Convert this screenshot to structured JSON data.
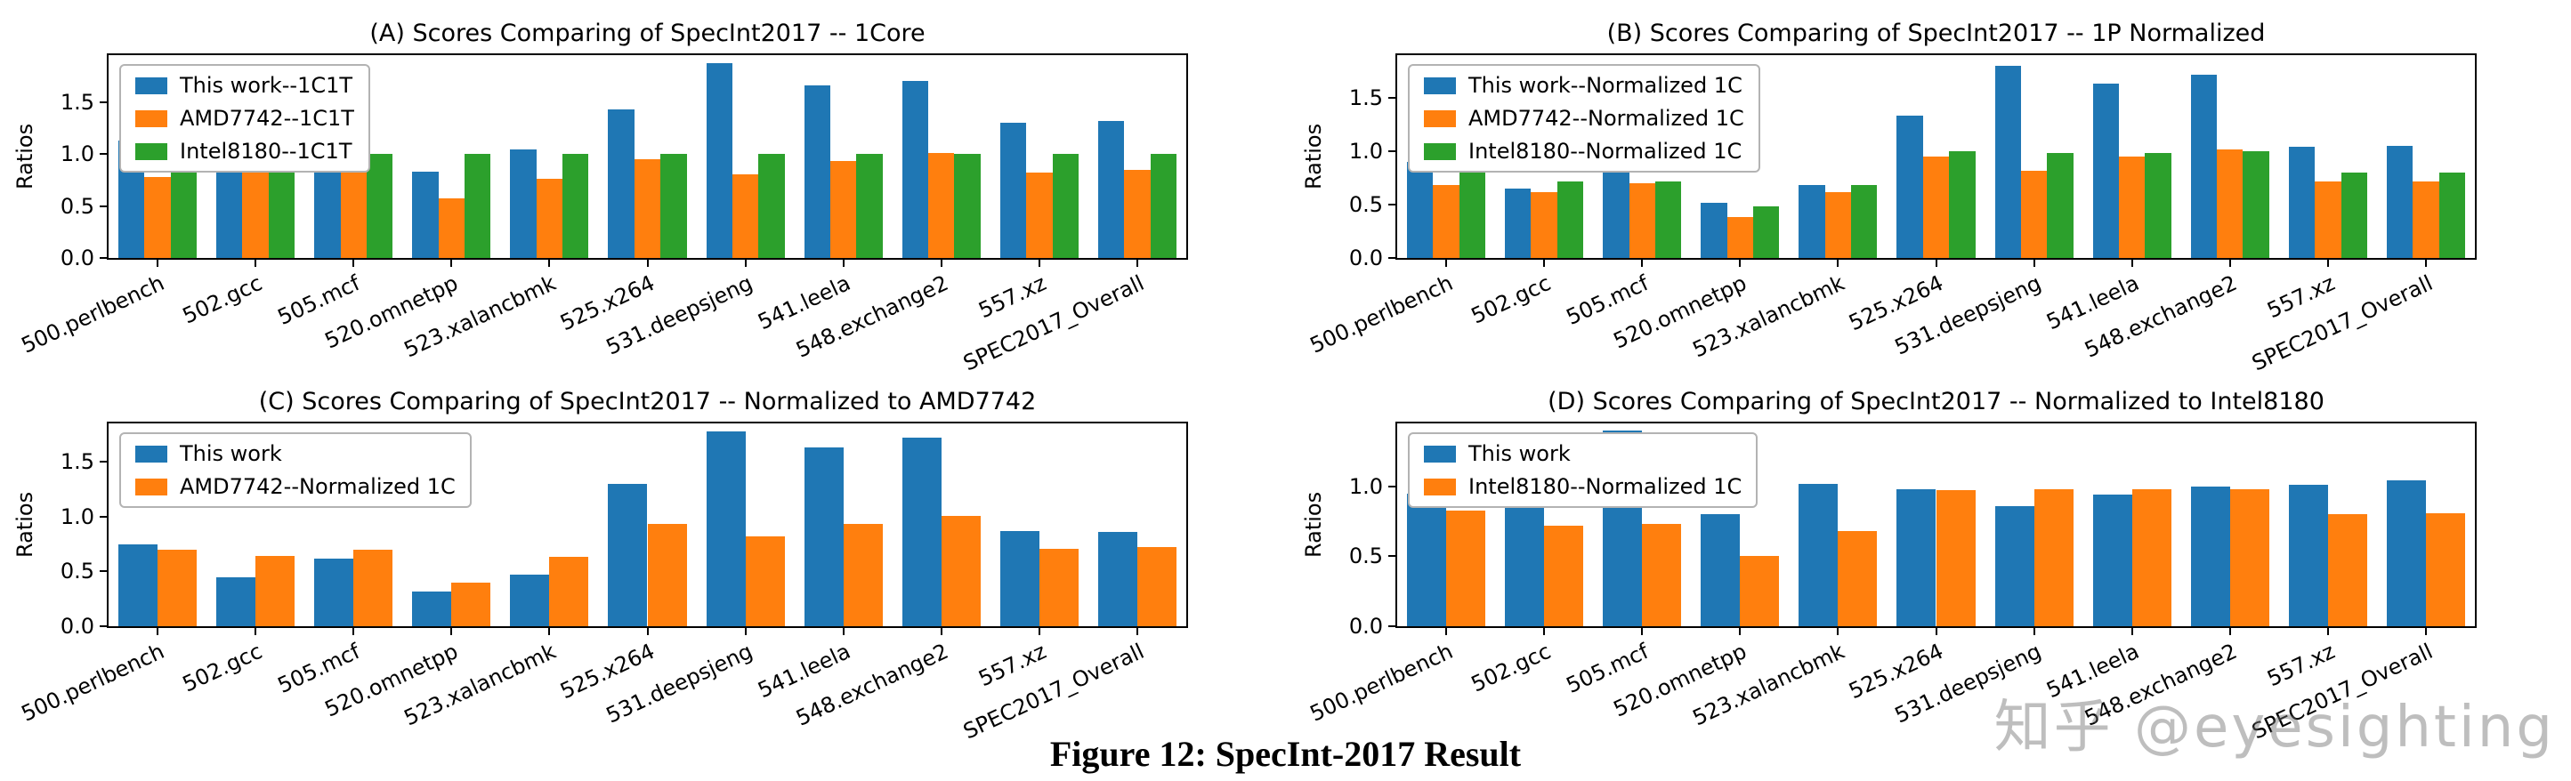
{
  "caption": "Figure 12: SpecInt-2017 Result",
  "watermark": "知乎 @eyesighting",
  "colors": {
    "blue": "#1f77b4",
    "orange": "#ff7f0e",
    "green": "#2ca02c"
  },
  "chart_data": [
    {
      "type": "bar",
      "title": "(A) Scores Comparing of SpecInt2017 -- 1Core",
      "xlabel": "",
      "ylabel": "Ratios",
      "ylim": [
        0,
        1.95
      ],
      "yticks": [
        0.0,
        0.5,
        1.0,
        1.5
      ],
      "legend_position": "upper-left",
      "categories": [
        "500.perlbench",
        "502.gcc",
        "505.mcf",
        "520.omnetpp",
        "523.xalancbmk",
        "525.x264",
        "531.deepsjeng",
        "541.leela",
        "548.exchange2",
        "557.xz",
        "SPEC2017_Overall"
      ],
      "series": [
        {
          "name": "This work--1C1T",
          "color": "#1f77b4",
          "values": [
            1.13,
            1.02,
            1.38,
            0.83,
            1.04,
            1.43,
            1.87,
            1.66,
            1.7,
            1.3,
            1.32
          ]
        },
        {
          "name": "AMD7742--1C1T",
          "color": "#ff7f0e",
          "values": [
            0.78,
            0.96,
            1.08,
            0.57,
            0.76,
            0.95,
            0.8,
            0.93,
            1.01,
            0.82,
            0.85
          ]
        },
        {
          "name": "Intel8180--1C1T",
          "color": "#2ca02c",
          "values": [
            1.0,
            1.0,
            1.0,
            1.0,
            1.0,
            1.0,
            1.0,
            1.0,
            1.0,
            1.0,
            1.0
          ]
        }
      ]
    },
    {
      "type": "bar",
      "title": "(B) Scores Comparing of SpecInt2017 -- 1P Normalized",
      "xlabel": "",
      "ylabel": "Ratios",
      "ylim": [
        0,
        1.9
      ],
      "yticks": [
        0.0,
        0.5,
        1.0,
        1.5
      ],
      "legend_position": "upper-left",
      "categories": [
        "500.perlbench",
        "502.gcc",
        "505.mcf",
        "520.omnetpp",
        "523.xalancbmk",
        "525.x264",
        "531.deepsjeng",
        "541.leela",
        "548.exchange2",
        "557.xz",
        "SPEC2017_Overall"
      ],
      "series": [
        {
          "name": "This work--Normalized 1C",
          "color": "#1f77b4",
          "values": [
            0.9,
            0.65,
            0.88,
            0.52,
            0.68,
            1.33,
            1.8,
            1.63,
            1.72,
            1.04,
            1.05
          ]
        },
        {
          "name": "AMD7742--Normalized 1C",
          "color": "#ff7f0e",
          "values": [
            0.68,
            0.62,
            0.7,
            0.38,
            0.62,
            0.95,
            0.82,
            0.95,
            1.02,
            0.72,
            0.72
          ]
        },
        {
          "name": "Intel8180--Normalized 1C",
          "color": "#2ca02c",
          "values": [
            0.88,
            0.72,
            0.72,
            0.48,
            0.68,
            1.0,
            0.98,
            0.98,
            1.0,
            0.8,
            0.8
          ]
        }
      ]
    },
    {
      "type": "bar",
      "title": "(C) Scores Comparing of SpecInt2017 -- Normalized to AMD7742",
      "xlabel": "",
      "ylabel": "Ratios",
      "ylim": [
        0,
        1.85
      ],
      "yticks": [
        0.0,
        0.5,
        1.0,
        1.5
      ],
      "legend_position": "upper-left",
      "categories": [
        "500.perlbench",
        "502.gcc",
        "505.mcf",
        "520.omnetpp",
        "523.xalancbmk",
        "525.x264",
        "531.deepsjeng",
        "541.leela",
        "548.exchange2",
        "557.xz",
        "SPEC2017_Overall"
      ],
      "series": [
        {
          "name": "This work",
          "color": "#1f77b4",
          "values": [
            0.75,
            0.45,
            0.62,
            0.32,
            0.47,
            1.3,
            1.78,
            1.63,
            1.72,
            0.87,
            0.86
          ]
        },
        {
          "name": "AMD7742--Normalized 1C",
          "color": "#ff7f0e",
          "values": [
            0.7,
            0.64,
            0.7,
            0.4,
            0.63,
            0.93,
            0.82,
            0.93,
            1.01,
            0.71,
            0.72
          ]
        }
      ]
    },
    {
      "type": "bar",
      "title": "(D) Scores Comparing of SpecInt2017 --  Normalized to Intel8180",
      "xlabel": "",
      "ylabel": "Ratios",
      "ylim": [
        0,
        1.45
      ],
      "yticks": [
        0.0,
        0.5,
        1.0
      ],
      "legend_position": "upper-left",
      "categories": [
        "500.perlbench",
        "502.gcc",
        "505.mcf",
        "520.omnetpp",
        "523.xalancbmk",
        "525.x264",
        "531.deepsjeng",
        "541.leela",
        "548.exchange2",
        "557.xz",
        "SPEC2017_Overall"
      ],
      "series": [
        {
          "name": "This work",
          "color": "#1f77b4",
          "values": [
            0.95,
            1.0,
            1.4,
            0.8,
            1.02,
            0.98,
            0.86,
            0.94,
            1.0,
            1.01,
            1.04
          ]
        },
        {
          "name": "Intel8180--Normalized 1C",
          "color": "#ff7f0e",
          "values": [
            0.83,
            0.72,
            0.73,
            0.5,
            0.68,
            0.97,
            0.98,
            0.98,
            0.98,
            0.8,
            0.81
          ]
        }
      ]
    }
  ]
}
